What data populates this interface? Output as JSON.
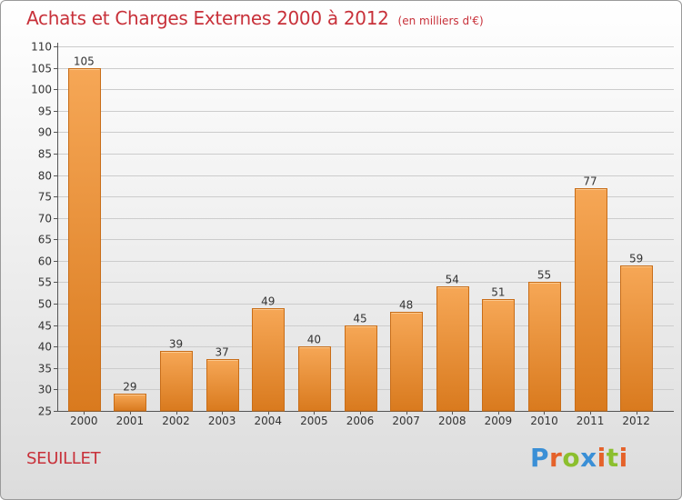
{
  "header": {
    "title": "Achats et Charges Externes 2000 à 2012",
    "subtitle": "(en milliers d'€)"
  },
  "footer": {
    "place": "SEUILLET",
    "logo_letters": [
      "P",
      "r",
      "o",
      "x",
      "i",
      "t",
      "i"
    ],
    "logo_colors": [
      "#3a8fd6",
      "#e5622a",
      "#8cbf2e",
      "#3a8fd6",
      "#e5622a",
      "#8cbf2e",
      "#e5622a"
    ]
  },
  "colors": {
    "title": "#c8313a",
    "bar_top": "#f6a756",
    "bar_bottom": "#d97a1e",
    "bar_stroke": "#c86d18"
  },
  "chart_data": {
    "type": "bar",
    "title": "Achats et Charges Externes 2000 à 2012",
    "subtitle": "(en milliers d'€)",
    "categories": [
      "2000",
      "2001",
      "2002",
      "2003",
      "2004",
      "2005",
      "2006",
      "2007",
      "2008",
      "2009",
      "2010",
      "2011",
      "2012"
    ],
    "values": [
      105,
      29,
      39,
      37,
      49,
      40,
      45,
      48,
      54,
      51,
      55,
      77,
      59
    ],
    "ylim": [
      25,
      110
    ],
    "yticks": [
      25,
      30,
      35,
      40,
      45,
      50,
      55,
      60,
      65,
      70,
      75,
      80,
      85,
      90,
      95,
      100,
      105,
      110
    ],
    "grid": true,
    "data_labels": true,
    "xlabel": "",
    "ylabel": ""
  }
}
